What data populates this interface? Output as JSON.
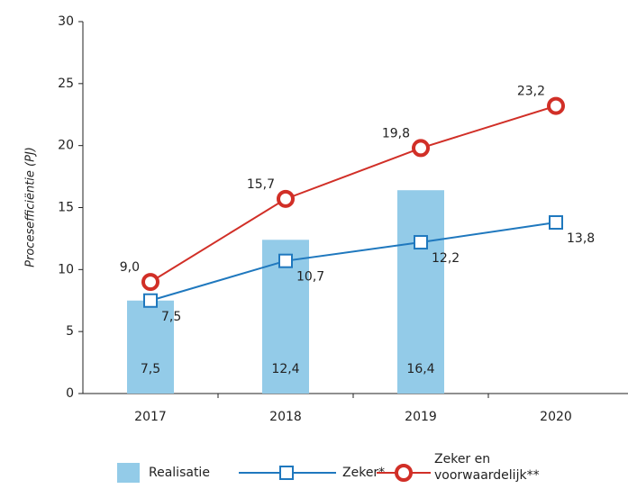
{
  "chart_data": {
    "type": "bar_line",
    "y_label": "Procesefficiëntie (PJ)",
    "categories": [
      "2017",
      "2018",
      "2019",
      "2020"
    ],
    "series": [
      {
        "name": "Realisatie",
        "type": "bar",
        "color": "#93cbe8",
        "values": [
          7.5,
          12.4,
          16.4,
          null
        ],
        "value_labels": [
          "7,5",
          "12,4",
          "16,4",
          null
        ]
      },
      {
        "name": "Zeker*",
        "type": "line",
        "marker": "square",
        "color": "#1f78be",
        "values": [
          7.5,
          10.7,
          12.2,
          13.8
        ],
        "value_labels": [
          "7,5",
          "10,7",
          "12,2",
          "13,8"
        ]
      },
      {
        "name": "Zeker en voorwaardelijk**",
        "type": "line",
        "marker": "circle",
        "color": "#d12f27",
        "values": [
          9.0,
          15.7,
          19.8,
          23.2
        ],
        "value_labels": [
          "9,0",
          "15,7",
          "19,8",
          "23,2"
        ]
      }
    ],
    "ylim": [
      0,
      30
    ],
    "yticks": [
      0,
      5,
      10,
      15,
      20,
      25,
      30
    ],
    "grid": false
  }
}
